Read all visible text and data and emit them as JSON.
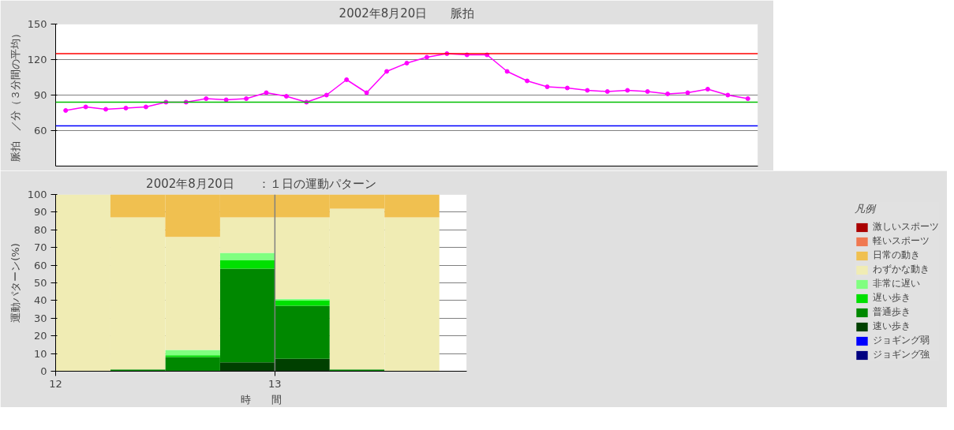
{
  "chart_data": [
    {
      "type": "line",
      "title": "2002年8月20日　　脈拍",
      "ylabel": "脈拍　／分（３分間の平均）",
      "ylim": [
        30,
        150
      ],
      "yticks": [
        60,
        90,
        120,
        150
      ],
      "tick_labels": "y",
      "grid": "y",
      "legend": false,
      "marker": "circle",
      "line_style": "solid",
      "categories": [
        null,
        null,
        null,
        null,
        null,
        null,
        null,
        null,
        null,
        null,
        null,
        null,
        null,
        null,
        null,
        null,
        null,
        null,
        null,
        null,
        null,
        null,
        null,
        null,
        null,
        null,
        null,
        null,
        null,
        null,
        null,
        null,
        null,
        null,
        null
      ],
      "series": [
        {
          "color": "#ff00ff",
          "values": [
            77,
            80,
            78,
            79,
            80,
            84,
            84,
            87,
            86,
            87,
            92,
            89,
            84,
            90,
            103,
            92,
            110,
            117,
            122,
            125,
            124,
            124,
            110,
            102,
            97,
            96,
            94,
            93,
            94,
            93,
            91,
            92,
            95,
            90,
            87
          ]
        }
      ],
      "ref_lines": [
        {
          "axis": "y",
          "value": 125,
          "color": "#ff0000"
        },
        {
          "axis": "y",
          "value": 84,
          "color": "#00c000"
        },
        {
          "axis": "y",
          "value": 64,
          "color": "#0000ff"
        }
      ]
    },
    {
      "type": "bar",
      "stacked": true,
      "title": "2002年8月20日　　：１日の運動パターン",
      "ylabel": "運動パターン(%)",
      "xlabel": "時　　間",
      "legend_title": "凡例",
      "legend": "right",
      "grid": "y",
      "x": [
        12.125,
        12.375,
        12.625,
        12.875,
        13.125,
        13.375,
        13.625
      ],
      "xlim": [
        12,
        13.875
      ],
      "xticks": [
        12,
        13
      ],
      "ylim": [
        0,
        100
      ],
      "yticks": [
        0,
        10,
        20,
        30,
        40,
        50,
        60,
        70,
        80,
        90,
        100
      ],
      "series": [
        {
          "name": "ジョギング強",
          "color": "#000080",
          "values": [
            0,
            0,
            0,
            0,
            0,
            0,
            0
          ]
        },
        {
          "name": "ジョギング弱",
          "color": "#0000ff",
          "values": [
            0,
            0,
            0,
            0,
            0,
            0,
            0
          ]
        },
        {
          "name": "速い歩き",
          "color": "#004000",
          "values": [
            0,
            0,
            0,
            5,
            7,
            0,
            0
          ]
        },
        {
          "name": "普通歩き",
          "color": "#008800",
          "values": [
            0,
            1,
            8,
            53,
            30,
            1,
            0
          ]
        },
        {
          "name": "遅い歩き",
          "color": "#00e000",
          "values": [
            0,
            0,
            1,
            5,
            3,
            0,
            0
          ]
        },
        {
          "name": "非常に遅い",
          "color": "#80ff80",
          "values": [
            0,
            0,
            3,
            4,
            1,
            0,
            0
          ]
        },
        {
          "name": "わずかな動き",
          "color": "#f0ecb4",
          "values": [
            100,
            86,
            64,
            20,
            46,
            91,
            87
          ]
        },
        {
          "name": "日常の動き",
          "color": "#f0c050",
          "values": [
            0,
            13,
            24,
            13,
            13,
            8,
            13
          ]
        },
        {
          "name": "軽いスポーツ",
          "color": "#f07850",
          "values": [
            0,
            0,
            0,
            0,
            0,
            0,
            0
          ]
        },
        {
          "name": "激しいスポーツ",
          "color": "#aa0000",
          "values": [
            0,
            0,
            0,
            0,
            0,
            0,
            0
          ]
        }
      ],
      "ref_lines": [
        {
          "axis": "x",
          "value": 13,
          "color": "#808080"
        }
      ]
    }
  ]
}
